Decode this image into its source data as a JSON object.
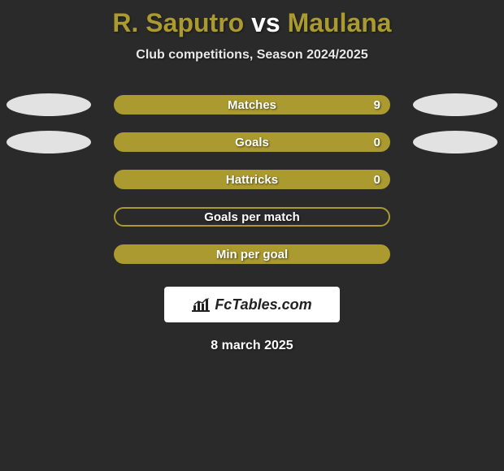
{
  "title": {
    "player1": "R. Saputro",
    "vs": "vs",
    "player2": "Maulana",
    "color": "#aa9a2f"
  },
  "subtitle": "Club competitions, Season 2024/2025",
  "colors": {
    "bar_fill": "#aa9a2f",
    "bar_outline": "#aa9a2f",
    "ellipse_left": "#e2e2e2",
    "ellipse_right": "#e2e2e2",
    "background": "#2a2a2a"
  },
  "rows": [
    {
      "label": "Matches",
      "value": "9",
      "filled": true,
      "left_ellipse": true,
      "right_ellipse": true
    },
    {
      "label": "Goals",
      "value": "0",
      "filled": true,
      "left_ellipse": true,
      "right_ellipse": true
    },
    {
      "label": "Hattricks",
      "value": "0",
      "filled": true,
      "left_ellipse": false,
      "right_ellipse": false
    },
    {
      "label": "Goals per match",
      "value": "",
      "filled": false,
      "left_ellipse": false,
      "right_ellipse": false
    },
    {
      "label": "Min per goal",
      "value": "",
      "filled": true,
      "left_ellipse": false,
      "right_ellipse": false
    }
  ],
  "logo": {
    "text": "FcTables.com"
  },
  "date": "8 march 2025"
}
